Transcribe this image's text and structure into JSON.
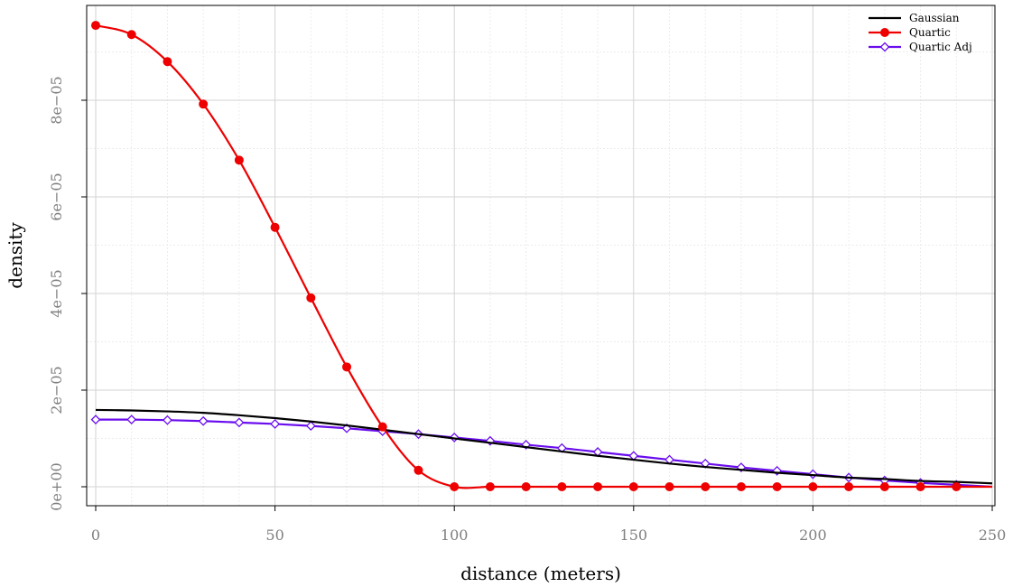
{
  "chart_data": {
    "type": "line",
    "title": "",
    "xlabel": "distance (meters)",
    "ylabel": "density",
    "xlim": [
      0,
      250
    ],
    "ylim": [
      0,
      9.55e-05
    ],
    "x_ticks": [
      0,
      50,
      100,
      150,
      200,
      250
    ],
    "x_tick_labels": [
      "0",
      "50",
      "100",
      "150",
      "200",
      "250"
    ],
    "y_ticks": [
      0,
      2e-05,
      4e-05,
      6e-05,
      8e-05
    ],
    "y_tick_labels": [
      "0e+00",
      "2e−05",
      "4e−05",
      "6e−05",
      "8e−05"
    ],
    "grid": true,
    "legend_position": "top-right",
    "series": [
      {
        "name": "Gaussian",
        "color": "#000000",
        "marker": "none",
        "x": [
          0,
          10,
          20,
          30,
          40,
          50,
          60,
          70,
          80,
          90,
          100,
          110,
          120,
          130,
          140,
          150,
          160,
          170,
          180,
          190,
          200,
          210,
          220,
          230,
          240,
          250
        ],
        "y": [
          1.59e-05,
          1.58e-05,
          1.56e-05,
          1.53e-05,
          1.48e-05,
          1.42e-05,
          1.35e-05,
          1.27e-05,
          1.18e-05,
          1.09e-05,
          1e-05,
          9.1e-06,
          8.2e-06,
          7.3e-06,
          6.4e-06,
          5.6e-06,
          4.8e-06,
          4.1e-06,
          3.5e-06,
          2.9e-06,
          2.4e-06,
          1.9e-06,
          1.6e-06,
          1.2e-06,
          1e-06,
          7e-07
        ]
      },
      {
        "name": "Quartic",
        "color": "#ee0000",
        "marker": "filled-circle",
        "x": [
          0,
          10,
          20,
          30,
          40,
          50,
          60,
          70,
          80,
          90,
          100,
          110,
          120,
          130,
          140,
          150,
          160,
          170,
          180,
          190,
          200,
          210,
          220,
          230,
          240,
          250
        ],
        "y": [
          9.55e-05,
          9.36e-05,
          8.8e-05,
          7.92e-05,
          6.76e-05,
          5.37e-05,
          3.91e-05,
          2.48e-05,
          1.24e-05,
          3.4e-06,
          0,
          0,
          0,
          0,
          0,
          0,
          0,
          0,
          0,
          0,
          0,
          0,
          0,
          0,
          0,
          0
        ]
      },
      {
        "name": "Quartic Adj",
        "color": "#6a0dee",
        "marker": "open-diamond",
        "x": [
          0,
          10,
          20,
          30,
          40,
          50,
          60,
          70,
          80,
          90,
          100,
          110,
          120,
          130,
          140,
          150,
          160,
          170,
          180,
          190,
          200,
          210,
          220,
          230,
          240,
          250
        ],
        "y": [
          1.39e-05,
          1.39e-05,
          1.38e-05,
          1.36e-05,
          1.33e-05,
          1.3e-05,
          1.26e-05,
          1.21e-05,
          1.15e-05,
          1.09e-05,
          1.02e-05,
          9.5e-06,
          8.7e-06,
          8e-06,
          7.2e-06,
          6.4e-06,
          5.6e-06,
          4.8e-06,
          4e-06,
          3.3e-06,
          2.6e-06,
          1.9e-06,
          1.3e-06,
          8e-07,
          4e-07,
          0
        ]
      }
    ]
  }
}
